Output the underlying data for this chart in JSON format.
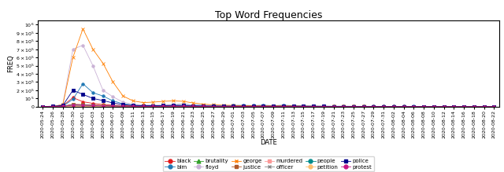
{
  "title": "Top Word Frequencies",
  "xlabel": "DATE",
  "ylabel": "FREQ",
  "dates": [
    "2020-05-24",
    "2020-05-26",
    "2020-05-28",
    "2020-05-30",
    "2020-06-01",
    "2020-06-03",
    "2020-06-05",
    "2020-06-07",
    "2020-06-09",
    "2020-06-11",
    "2020-06-13",
    "2020-06-15",
    "2020-06-17",
    "2020-06-19",
    "2020-06-21",
    "2020-06-23",
    "2020-06-25",
    "2020-06-27",
    "2020-06-29",
    "2020-07-01",
    "2020-07-03",
    "2020-07-05",
    "2020-07-07",
    "2020-07-09",
    "2020-07-11",
    "2020-07-13",
    "2020-07-15",
    "2020-07-17",
    "2020-07-19",
    "2020-07-21",
    "2020-07-23",
    "2020-07-25",
    "2020-07-27",
    "2020-07-29",
    "2020-07-31",
    "2020-08-02",
    "2020-08-04",
    "2020-08-06",
    "2020-08-08",
    "2020-08-10",
    "2020-08-12",
    "2020-08-14",
    "2020-08-16",
    "2020-08-18",
    "2020-08-20",
    "2020-08-22"
  ],
  "series": {
    "black": {
      "color": "#e31a1c",
      "marker": "o",
      "values": [
        2000,
        5000,
        12000,
        110000,
        60000,
        40000,
        25000,
        18000,
        12000,
        9000,
        8000,
        9000,
        10000,
        8000,
        7000,
        6000,
        6000,
        6000,
        5000,
        6000,
        6000,
        5000,
        5500,
        5000,
        5500,
        5000,
        4500,
        4000,
        4000,
        3500,
        4000,
        3500,
        3500,
        3000,
        3000,
        3000,
        3000,
        2500,
        2500,
        2500,
        2000,
        2500,
        2000,
        2000,
        2000,
        1500
      ]
    },
    "blm": {
      "color": "#1f78b4",
      "marker": "o",
      "values": [
        1000,
        2000,
        5000,
        90000,
        280000,
        170000,
        130000,
        70000,
        35000,
        20000,
        15000,
        14000,
        14000,
        20000,
        30000,
        20000,
        15000,
        14000,
        12000,
        15000,
        16000,
        13000,
        17000,
        12000,
        17000,
        12000,
        10000,
        8000,
        6000,
        5000,
        5000,
        4000,
        4000,
        4000,
        3500,
        3500,
        3000,
        3000,
        2500,
        2500,
        2000,
        2500,
        2000,
        2000,
        2000,
        1500
      ]
    },
    "brutality": {
      "color": "#33a02c",
      "marker": "^",
      "values": [
        500,
        1000,
        2000,
        10000,
        8000,
        6000,
        5000,
        4000,
        3000,
        2500,
        2000,
        1800,
        2000,
        2000,
        1800,
        1500,
        1500,
        1500,
        1200,
        1200,
        1000,
        1000,
        1000,
        1000,
        1000,
        900,
        800,
        800,
        700,
        600,
        600,
        600,
        600,
        500,
        500,
        500,
        500,
        400,
        400,
        400,
        300,
        400,
        300,
        300,
        300,
        200
      ]
    },
    "floyd": {
      "color": "#cab2d6",
      "marker": "o",
      "values": [
        500,
        2000,
        30000,
        700000,
        750000,
        500000,
        200000,
        120000,
        55000,
        30000,
        20000,
        18000,
        18000,
        25000,
        30000,
        18000,
        12000,
        10000,
        8000,
        8000,
        7000,
        6000,
        6000,
        5000,
        5000,
        4000,
        3500,
        3000,
        2500,
        2000,
        2000,
        2000,
        2000,
        2000,
        1500,
        1500,
        1500,
        1200,
        1000,
        1000,
        800,
        1000,
        800,
        800,
        800,
        600
      ]
    },
    "george": {
      "color": "#ff7f00",
      "marker": "x",
      "values": [
        800,
        2000,
        25000,
        600000,
        950000,
        700000,
        530000,
        300000,
        130000,
        70000,
        50000,
        55000,
        65000,
        70000,
        65000,
        45000,
        30000,
        22000,
        18000,
        15000,
        12000,
        10000,
        10000,
        9000,
        10000,
        8000,
        6000,
        5000,
        4000,
        3500,
        3500,
        3000,
        3000,
        2500,
        2500,
        2500,
        2000,
        2000,
        1800,
        1500,
        1500,
        1500,
        1200,
        1200,
        1200,
        1000
      ]
    },
    "justice": {
      "color": "#b15928",
      "marker": "s",
      "values": [
        1000,
        2000,
        5000,
        30000,
        25000,
        20000,
        15000,
        10000,
        7000,
        6000,
        5000,
        5000,
        5500,
        6000,
        5500,
        4500,
        4000,
        3500,
        3000,
        3000,
        2500,
        2500,
        2500,
        2500,
        2500,
        2000,
        1800,
        1500,
        1500,
        1200,
        1200,
        1000,
        1000,
        1000,
        900,
        800,
        800,
        700,
        600,
        600,
        500,
        600,
        500,
        500,
        500,
        400
      ]
    },
    "murdered": {
      "color": "#fb9a99",
      "marker": "s",
      "values": [
        200,
        500,
        1000,
        3000,
        2500,
        2000,
        1500,
        1200,
        800,
        700,
        600,
        600,
        700,
        700,
        600,
        500,
        500,
        500,
        400,
        400,
        400,
        400,
        400,
        400,
        400,
        300,
        300,
        300,
        300,
        300,
        300,
        300,
        300,
        300,
        300,
        300,
        300,
        300,
        300,
        300,
        300,
        300,
        300,
        300,
        300,
        200
      ]
    },
    "officer": {
      "color": "#888888",
      "marker": "x",
      "values": [
        500,
        1000,
        3000,
        15000,
        12000,
        9000,
        7000,
        5000,
        3500,
        2500,
        2000,
        2000,
        2200,
        2500,
        2200,
        2000,
        1800,
        1500,
        1200,
        1200,
        1000,
        1000,
        1000,
        1000,
        1000,
        900,
        800,
        700,
        700,
        600,
        600,
        600,
        600,
        600,
        500,
        500,
        500,
        500,
        400,
        400,
        400,
        400,
        400,
        400,
        400,
        300
      ]
    },
    "people": {
      "color": "#008b8b",
      "marker": "o",
      "values": [
        1000,
        2000,
        5000,
        20000,
        18000,
        14000,
        10000,
        8000,
        5000,
        4000,
        3500,
        3500,
        4000,
        4500,
        4000,
        3500,
        3000,
        2500,
        2000,
        2000,
        2000,
        1800,
        2000,
        1800,
        2000,
        1500,
        1500,
        1200,
        1000,
        1000,
        1000,
        900,
        900,
        800,
        800,
        800,
        700,
        700,
        600,
        600,
        500,
        600,
        500,
        500,
        500,
        400
      ]
    },
    "petition": {
      "color": "#fdbf6f",
      "marker": "o",
      "values": [
        300,
        600,
        1500,
        8000,
        7000,
        6000,
        5000,
        4000,
        3000,
        2500,
        2000,
        2000,
        2200,
        2500,
        2200,
        2000,
        1800,
        1500,
        1200,
        1200,
        1000,
        1000,
        1000,
        1000,
        1000,
        900,
        800,
        700,
        700,
        600,
        600,
        600,
        600,
        600,
        500,
        500,
        500,
        500,
        400,
        400,
        400,
        400,
        400,
        400,
        400,
        300
      ]
    },
    "police": {
      "color": "#00008b",
      "marker": "s",
      "values": [
        2000,
        5000,
        15000,
        200000,
        150000,
        100000,
        75000,
        45000,
        25000,
        15000,
        12000,
        12000,
        14000,
        15000,
        13000,
        10000,
        9000,
        7000,
        6000,
        6000,
        5000,
        5000,
        5500,
        5000,
        5500,
        4500,
        4000,
        3500,
        3000,
        2500,
        2500,
        2000,
        2000,
        2000,
        1800,
        1800,
        1500,
        1500,
        1200,
        1200,
        1000,
        1200,
        1000,
        1000,
        1000,
        800
      ]
    },
    "protest": {
      "color": "#c71585",
      "marker": "o",
      "values": [
        500,
        1000,
        3000,
        20000,
        18000,
        14000,
        10000,
        8000,
        5000,
        4000,
        3500,
        3500,
        4000,
        4500,
        4000,
        3500,
        3000,
        2500,
        2000,
        2000,
        2000,
        1800,
        2000,
        1800,
        2000,
        1500,
        1500,
        1200,
        1000,
        1000,
        1000,
        900,
        900,
        800,
        800,
        800,
        700,
        700,
        600,
        600,
        500,
        600,
        500,
        500,
        500,
        400
      ]
    }
  },
  "ylim": [
    0,
    1050000
  ],
  "yticks": [
    0,
    100000,
    200000,
    300000,
    400000,
    500000,
    600000,
    700000,
    800000,
    900000,
    1000000
  ],
  "figsize": [
    6.4,
    2.19
  ],
  "dpi": 100,
  "title_fontsize": 9,
  "axis_label_fontsize": 6,
  "tick_fontsize": 4.5,
  "legend_fontsize": 5,
  "marker_size": 2.5,
  "line_width": 0.6
}
